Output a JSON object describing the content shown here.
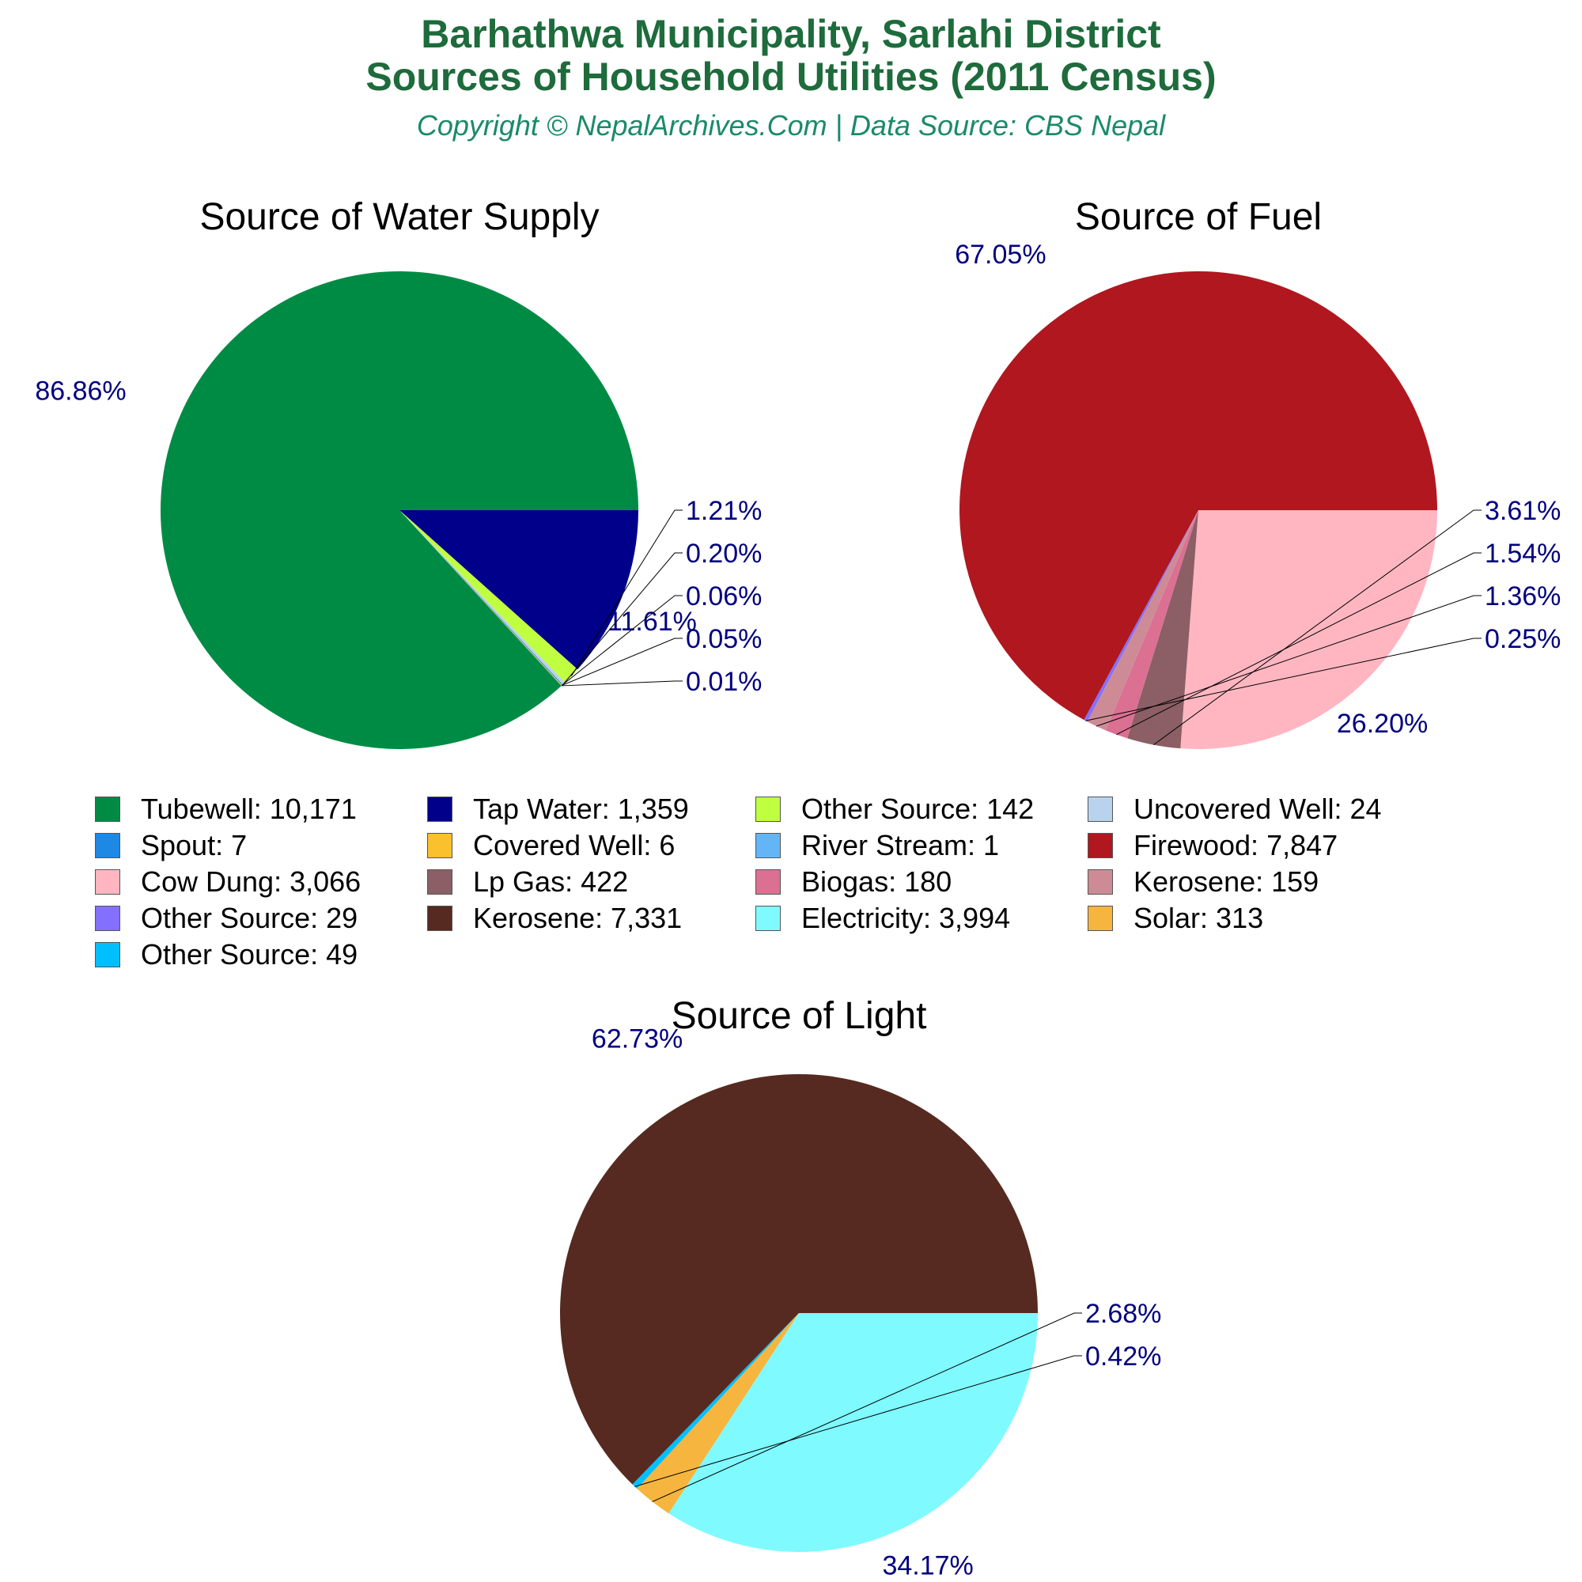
{
  "header": {
    "title_line1": "Barhathwa Municipality, Sarlahi District",
    "title_line2": "Sources of Household Utilities (2011 Census)",
    "subtitle": "Copyright © NepalArchives.Com | Data Source: CBS Nepal"
  },
  "chart_data": [
    {
      "type": "pie",
      "title": "Source of Water Supply",
      "slices": [
        {
          "label": "Tubewell",
          "value": 10171,
          "pct_label": "86.86%",
          "color": "#008b45"
        },
        {
          "label": "Tap Water",
          "value": 1359,
          "pct_label": "11.61%",
          "color": "#00008b"
        },
        {
          "label": "Other Source",
          "value": 142,
          "pct_label": "1.21%",
          "color": "#bfff3f"
        },
        {
          "label": "Uncovered Well",
          "value": 24,
          "pct_label": "0.20%",
          "color": "#b9d3ee"
        },
        {
          "label": "Spout",
          "value": 7,
          "pct_label": "0.06%",
          "color": "#1e88e5"
        },
        {
          "label": "Covered Well",
          "value": 6,
          "pct_label": "0.05%",
          "color": "#fbc02d"
        },
        {
          "label": "River Stream",
          "value": 1,
          "pct_label": "0.01%",
          "color": "#64b5f6"
        }
      ]
    },
    {
      "type": "pie",
      "title": "Source of Fuel",
      "slices": [
        {
          "label": "Firewood",
          "value": 7847,
          "pct_label": "67.05%",
          "color": "#b0171f"
        },
        {
          "label": "Cow Dung",
          "value": 3066,
          "pct_label": "26.20%",
          "color": "#ffb6c1"
        },
        {
          "label": "Lp Gas",
          "value": 422,
          "pct_label": "3.61%",
          "color": "#8b5f65"
        },
        {
          "label": "Biogas",
          "value": 180,
          "pct_label": "1.54%",
          "color": "#db7093"
        },
        {
          "label": "Kerosene",
          "value": 159,
          "pct_label": "1.36%",
          "color": "#cd8c95"
        },
        {
          "label": "Other Source",
          "value": 29,
          "pct_label": "0.25%",
          "color": "#8470ff"
        }
      ]
    },
    {
      "type": "pie",
      "title": "Source of Light",
      "slices": [
        {
          "label": "Kerosene",
          "value": 7331,
          "pct_label": "62.73%",
          "color": "#562a20"
        },
        {
          "label": "Electricity",
          "value": 3994,
          "pct_label": "34.17%",
          "color": "#7ffaff"
        },
        {
          "label": "Solar",
          "value": 313,
          "pct_label": "2.68%",
          "color": "#f5b53f"
        },
        {
          "label": "Other Source",
          "value": 49,
          "pct_label": "0.42%",
          "color": "#00bfff"
        }
      ]
    }
  ],
  "legend": [
    {
      "text": "Tubewell: 10,171",
      "color": "#008b45"
    },
    {
      "text": "Tap Water: 1,359",
      "color": "#00008b"
    },
    {
      "text": "Other Source: 142",
      "color": "#bfff3f"
    },
    {
      "text": "Uncovered Well: 24",
      "color": "#b9d3ee"
    },
    {
      "text": "Spout: 7",
      "color": "#1e88e5"
    },
    {
      "text": "Covered Well: 6",
      "color": "#fbc02d"
    },
    {
      "text": "River Stream: 1",
      "color": "#64b5f6"
    },
    {
      "text": "Firewood: 7,847",
      "color": "#b0171f"
    },
    {
      "text": "Cow Dung: 3,066",
      "color": "#ffb6c1"
    },
    {
      "text": "Lp Gas: 422",
      "color": "#8b5f65"
    },
    {
      "text": "Biogas: 180",
      "color": "#db7093"
    },
    {
      "text": "Kerosene: 159",
      "color": "#cd8c95"
    },
    {
      "text": "Other Source: 29",
      "color": "#8470ff"
    },
    {
      "text": "Kerosene: 7,331",
      "color": "#562a20"
    },
    {
      "text": "Electricity: 3,994",
      "color": "#7ffaff"
    },
    {
      "text": "Solar: 313",
      "color": "#f5b53f"
    },
    {
      "text": "Other Source: 49",
      "color": "#00bfff"
    }
  ]
}
